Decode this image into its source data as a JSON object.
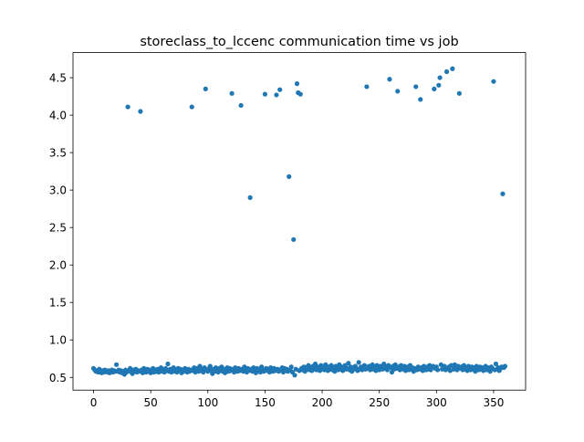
{
  "chart_data": {
    "type": "scatter",
    "title": "storeclass_to_lccenc communication time vs job",
    "x": [
      0,
      1,
      2,
      3,
      4,
      5,
      6,
      7,
      8,
      9,
      10,
      11,
      12,
      13,
      14,
      15,
      16,
      17,
      18,
      19,
      20,
      21,
      22,
      23,
      24,
      25,
      26,
      27,
      28,
      29,
      30,
      31,
      32,
      33,
      34,
      35,
      36,
      37,
      38,
      39,
      40,
      41,
      42,
      43,
      44,
      45,
      46,
      47,
      48,
      49,
      50,
      51,
      52,
      53,
      54,
      55,
      56,
      57,
      58,
      59,
      60,
      61,
      62,
      63,
      64,
      65,
      66,
      67,
      68,
      69,
      70,
      71,
      72,
      73,
      74,
      75,
      76,
      77,
      78,
      79,
      80,
      81,
      82,
      83,
      84,
      85,
      86,
      87,
      88,
      89,
      90,
      91,
      92,
      93,
      94,
      95,
      96,
      97,
      98,
      99,
      100,
      101,
      102,
      103,
      104,
      105,
      106,
      107,
      108,
      109,
      110,
      111,
      112,
      113,
      114,
      115,
      116,
      117,
      118,
      119,
      120,
      121,
      122,
      123,
      124,
      125,
      126,
      127,
      128,
      129,
      130,
      131,
      132,
      133,
      134,
      135,
      136,
      137,
      138,
      139,
      140,
      141,
      142,
      143,
      144,
      145,
      146,
      147,
      148,
      149,
      150,
      151,
      152,
      153,
      154,
      155,
      156,
      157,
      158,
      159,
      160,
      161,
      162,
      163,
      164,
      165,
      166,
      167,
      168,
      169,
      170,
      171,
      172,
      173,
      174,
      175,
      176,
      177,
      178,
      179,
      180,
      181,
      182,
      183,
      184,
      185,
      186,
      187,
      188,
      189,
      190,
      191,
      192,
      193,
      194,
      195,
      196,
      197,
      198,
      199,
      200,
      201,
      202,
      203,
      204,
      205,
      206,
      207,
      208,
      209,
      210,
      211,
      212,
      213,
      214,
      215,
      216,
      217,
      218,
      219,
      220,
      221,
      222,
      223,
      224,
      225,
      226,
      227,
      228,
      229,
      230,
      231,
      232,
      233,
      234,
      235,
      236,
      237,
      238,
      239,
      240,
      241,
      242,
      243,
      244,
      245,
      246,
      247,
      248,
      249,
      250,
      251,
      252,
      253,
      254,
      255,
      256,
      257,
      258,
      259,
      260,
      261,
      262,
      263,
      264,
      265,
      266,
      267,
      268,
      269,
      270,
      271,
      272,
      273,
      274,
      275,
      276,
      277,
      278,
      279,
      280,
      281,
      282,
      283,
      284,
      285,
      286,
      287,
      288,
      289,
      290,
      291,
      292,
      293,
      294,
      295,
      296,
      297,
      298,
      299,
      300,
      301,
      302,
      303,
      304,
      305,
      306,
      307,
      308,
      309,
      310,
      311,
      312,
      313,
      314,
      315,
      316,
      317,
      318,
      319,
      320,
      321,
      322,
      323,
      324,
      325,
      326,
      327,
      328,
      329,
      330,
      331,
      332,
      333,
      334,
      335,
      336,
      337,
      338,
      339,
      340,
      341,
      342,
      343,
      344,
      345,
      346,
      347,
      348,
      349,
      350,
      351,
      352,
      353,
      354,
      355,
      356,
      357,
      358,
      359,
      360
    ],
    "values": [
      0.62,
      0.6,
      0.58,
      0.59,
      0.57,
      0.61,
      0.58,
      0.56,
      0.59,
      0.57,
      0.6,
      0.58,
      0.57,
      0.59,
      0.56,
      0.58,
      0.6,
      0.57,
      0.59,
      0.58,
      0.67,
      0.58,
      0.6,
      0.57,
      0.59,
      0.56,
      0.58,
      0.54,
      0.6,
      0.57,
      4.11,
      0.59,
      0.62,
      0.57,
      0.55,
      0.6,
      0.58,
      0.61,
      0.57,
      0.59,
      0.58,
      4.05,
      0.6,
      0.56,
      0.62,
      0.59,
      0.57,
      0.61,
      0.58,
      0.6,
      0.56,
      0.59,
      0.62,
      0.57,
      0.6,
      0.58,
      0.61,
      0.57,
      0.59,
      0.63,
      0.58,
      0.6,
      0.57,
      0.62,
      0.59,
      0.68,
      0.58,
      0.61,
      0.57,
      0.6,
      0.63,
      0.58,
      0.6,
      0.57,
      0.62,
      0.59,
      0.61,
      0.56,
      0.6,
      0.58,
      0.62,
      0.59,
      0.57,
      0.61,
      0.58,
      0.6,
      4.11,
      0.59,
      0.63,
      0.57,
      0.6,
      0.62,
      0.58,
      0.65,
      0.59,
      0.61,
      0.57,
      0.63,
      4.35,
      0.6,
      0.58,
      0.62,
      0.65,
      0.59,
      0.55,
      0.61,
      0.58,
      0.63,
      0.6,
      0.57,
      0.62,
      0.59,
      0.64,
      0.58,
      0.61,
      0.56,
      0.6,
      0.63,
      0.58,
      0.62,
      0.59,
      4.29,
      0.61,
      0.57,
      0.63,
      0.6,
      0.58,
      0.62,
      0.59,
      4.13,
      0.61,
      0.58,
      0.64,
      0.6,
      0.57,
      0.62,
      0.59,
      2.9,
      0.61,
      0.58,
      0.63,
      0.6,
      0.56,
      0.62,
      0.59,
      0.61,
      0.57,
      0.64,
      0.6,
      0.58,
      4.28,
      0.62,
      0.59,
      0.61,
      0.57,
      0.63,
      0.6,
      0.58,
      0.62,
      0.59,
      4.27,
      0.61,
      0.58,
      4.34,
      0.6,
      0.63,
      0.57,
      0.62,
      0.59,
      0.61,
      0.58,
      3.18,
      0.6,
      0.64,
      0.57,
      2.34,
      0.53,
      0.61,
      4.42,
      4.3,
      0.59,
      4.28,
      0.62,
      0.6,
      0.64,
      0.58,
      0.63,
      0.61,
      0.66,
      0.6,
      0.63,
      0.59,
      0.65,
      0.61,
      0.68,
      0.6,
      0.64,
      0.62,
      0.59,
      0.66,
      0.61,
      0.63,
      0.6,
      0.67,
      0.62,
      0.59,
      0.64,
      0.61,
      0.66,
      0.6,
      0.63,
      0.58,
      0.65,
      0.62,
      0.6,
      0.67,
      0.61,
      0.64,
      0.59,
      0.63,
      0.66,
      0.61,
      0.62,
      0.69,
      0.6,
      0.64,
      0.58,
      0.63,
      0.61,
      0.65,
      0.62,
      0.59,
      0.7,
      0.61,
      0.64,
      0.6,
      0.63,
      0.66,
      0.61,
      4.38,
      0.62,
      0.65,
      0.6,
      0.63,
      0.67,
      0.61,
      0.64,
      0.59,
      0.66,
      0.62,
      0.6,
      0.65,
      0.63,
      0.61,
      0.68,
      0.62,
      0.64,
      0.6,
      0.66,
      4.48,
      0.63,
      0.57,
      0.65,
      0.61,
      0.67,
      0.62,
      4.32,
      0.64,
      0.6,
      0.66,
      0.63,
      0.61,
      0.65,
      0.59,
      0.62,
      0.64,
      0.6,
      0.66,
      0.61,
      0.63,
      0.58,
      0.62,
      4.38,
      0.6,
      0.64,
      0.61,
      4.21,
      0.63,
      0.59,
      0.65,
      0.62,
      0.6,
      0.64,
      0.61,
      0.66,
      0.6,
      0.63,
      0.65,
      4.35,
      0.62,
      0.64,
      0.6,
      4.4,
      4.5,
      0.67,
      0.61,
      0.63,
      0.65,
      0.6,
      4.58,
      0.62,
      0.64,
      0.59,
      0.66,
      4.62,
      0.61,
      0.67,
      0.63,
      0.6,
      0.65,
      4.29,
      0.62,
      0.64,
      0.6,
      0.66,
      0.61,
      0.63,
      0.59,
      0.65,
      0.62,
      0.6,
      0.64,
      0.61,
      0.63,
      0.58,
      0.65,
      0.62,
      0.6,
      0.64,
      0.61,
      0.63,
      0.59,
      0.62,
      0.65,
      0.6,
      0.63,
      0.61,
      0.58,
      0.64,
      0.62,
      4.45,
      0.6,
      0.68,
      0.61,
      0.63,
      0.59,
      0.62,
      0.64,
      2.95,
      0.63,
      0.65
    ],
    "color": "#1f77b4",
    "xlim": [
      -18,
      378
    ],
    "xticks": [
      0,
      50,
      100,
      150,
      200,
      250,
      300,
      350
    ],
    "ylim": [
      0.33,
      4.835
    ],
    "yticks": [
      0.5,
      {
        "value": 1,
        "label": "1.0"
      },
      1.5,
      {
        "value": 2,
        "label": "2.0"
      },
      2.5,
      {
        "value": 3,
        "label": "3.0"
      },
      3.5,
      {
        "value": 4,
        "label": "4.0"
      },
      4.5
    ],
    "grid": false
  }
}
